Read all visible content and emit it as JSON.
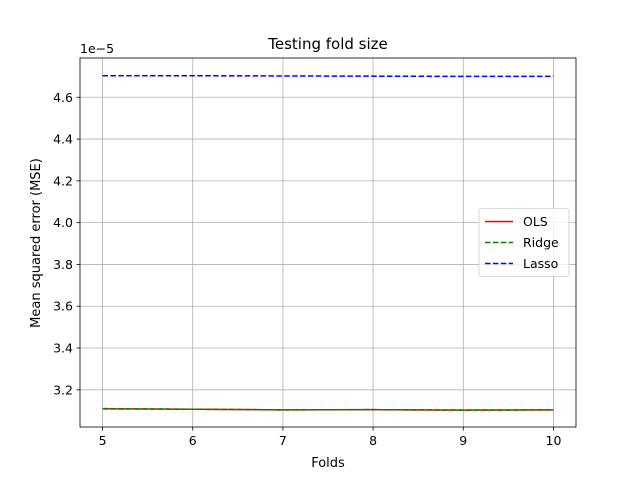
{
  "chart_data": {
    "type": "line",
    "title": "Testing fold size",
    "xlabel": "Folds",
    "ylabel": "Mean squared error (MSE)",
    "y_offset_label": "1e−5",
    "x": [
      5,
      6,
      7,
      8,
      9,
      10
    ],
    "xlim": [
      4.75,
      10.25
    ],
    "ylim": [
      3.022,
      4.788
    ],
    "xticks": [
      5,
      6,
      7,
      8,
      9,
      10
    ],
    "yticks": [
      3.2,
      3.4,
      3.6,
      3.8,
      4.0,
      4.2,
      4.4,
      4.6
    ],
    "ytick_labels": [
      "3.2",
      "3.4",
      "3.6",
      "3.8",
      "4.0",
      "4.2",
      "4.4",
      "4.6"
    ],
    "grid": true,
    "legend_position": "center right",
    "series": [
      {
        "name": "OLS",
        "color": "#ff0000",
        "dash": "solid",
        "values": [
          3.109,
          3.107,
          3.104,
          3.105,
          3.103,
          3.104
        ]
      },
      {
        "name": "Ridge",
        "color": "#008000",
        "dash": "dashed",
        "values": [
          3.11,
          3.107,
          3.104,
          3.105,
          3.103,
          3.104
        ]
      },
      {
        "name": "Lasso",
        "color": "#0000ff",
        "dash": "dashed",
        "values": [
          4.703,
          4.703,
          4.702,
          4.701,
          4.7,
          4.7
        ]
      }
    ]
  }
}
